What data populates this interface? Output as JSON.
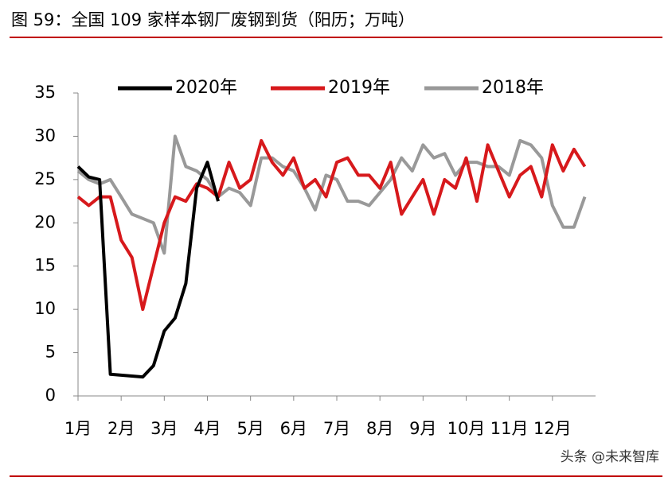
{
  "chart_data": {
    "type": "line",
    "title": "图 59：全国 109 家样本钢厂废钢到货（阳历；万吨）",
    "watermark": "头条 @未来智库",
    "categories": [
      "1月",
      null,
      null,
      null,
      "2月",
      null,
      null,
      null,
      "3月",
      null,
      null,
      null,
      "4月",
      null,
      null,
      null,
      "5月",
      null,
      null,
      null,
      "6月",
      null,
      null,
      null,
      "7月",
      null,
      null,
      null,
      "8月",
      null,
      null,
      null,
      "9月",
      null,
      null,
      null,
      "10月",
      null,
      null,
      null,
      "11月",
      null,
      null,
      null,
      "12月",
      null,
      null,
      null
    ],
    "series": [
      {
        "name": "2020年",
        "color": "#000000",
        "values": [
          26.5,
          25.3,
          25,
          2.5,
          2.4,
          2.3,
          2.2,
          3.5,
          7.5,
          9,
          13,
          24,
          27,
          22.5,
          null,
          null,
          null,
          null,
          null,
          null,
          null,
          null,
          null,
          null,
          null,
          null,
          null,
          null,
          null,
          null,
          null,
          null,
          null,
          null,
          null,
          null,
          null,
          null,
          null,
          null,
          null,
          null,
          null,
          null,
          null,
          null,
          null,
          null
        ]
      },
      {
        "name": "2019年",
        "color": "#d7191c",
        "values": [
          23,
          22,
          23,
          23,
          18,
          16,
          10,
          15,
          20,
          23,
          22.5,
          24.5,
          24,
          23,
          27,
          24,
          25,
          29.5,
          27,
          25.5,
          27.5,
          24,
          25,
          23,
          27,
          27.5,
          25.5,
          25.5,
          24,
          27,
          21,
          23,
          25,
          21,
          25,
          24,
          27.5,
          22.5,
          29,
          26,
          23,
          25.5,
          26.5,
          23,
          29,
          26,
          28.5,
          26.5
        ]
      },
      {
        "name": "2018年",
        "color": "#999999",
        "values": [
          26,
          25,
          24.5,
          25,
          23,
          21,
          20.5,
          20,
          16.5,
          30,
          26.5,
          26,
          25,
          23,
          24,
          23.5,
          22,
          27.5,
          27.5,
          26.5,
          26,
          24,
          21.5,
          25.5,
          25,
          22.5,
          22.5,
          22,
          23.5,
          25,
          27.5,
          26,
          29,
          27.5,
          28,
          25.5,
          27,
          27,
          26.5,
          26.5,
          25.5,
          29.5,
          29,
          27.5,
          22,
          19.5,
          19.5,
          23
        ]
      }
    ],
    "ylim": [
      0,
      35
    ],
    "yticks": [
      0,
      5,
      10,
      15,
      20,
      25,
      30,
      35
    ]
  }
}
